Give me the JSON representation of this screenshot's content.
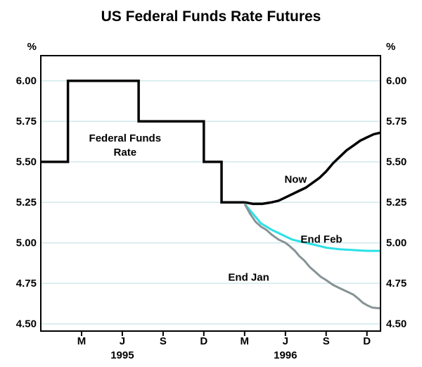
{
  "chart_data": {
    "type": "line",
    "title": "US Federal Funds Rate Futures",
    "y_unit": "%",
    "xlim": [
      -1,
      24
    ],
    "ylim": [
      4.455,
      6.155
    ],
    "grid": true,
    "yticks": [
      4.5,
      4.75,
      5.0,
      5.25,
      5.5,
      5.75,
      6.0
    ],
    "ytick_labels": [
      "4.50",
      "4.75",
      "5.00",
      "5.25",
      "5.50",
      "5.75",
      "6.00"
    ],
    "xticks": [
      2,
      5,
      8,
      11,
      14,
      17,
      20,
      23
    ],
    "xtick_labels": [
      "M",
      "J",
      "S",
      "D",
      "M",
      "J",
      "S",
      "D"
    ],
    "year_labels": [
      {
        "label": "1995",
        "x": 5
      },
      {
        "label": "1996",
        "x": 17
      }
    ],
    "colors": {
      "grid": "#d2e8ec",
      "frame": "#000000",
      "federal_funds_rate": "#000000",
      "now": "#000000",
      "end_feb": "#2be0e6",
      "end_jan": "#879396"
    },
    "series": [
      {
        "name": "Federal Funds Rate",
        "color": "#000000",
        "width": 3.5,
        "points": [
          [
            -1,
            5.5
          ],
          [
            1.0,
            5.5
          ],
          [
            1.0,
            6.0
          ],
          [
            6.2,
            6.0
          ],
          [
            6.2,
            5.75
          ],
          [
            11.0,
            5.75
          ],
          [
            11.0,
            5.5
          ],
          [
            12.3,
            5.5
          ],
          [
            12.3,
            5.25
          ],
          [
            14.0,
            5.25
          ]
        ]
      },
      {
        "name": "Now",
        "color": "#000000",
        "width": 3.5,
        "points": [
          [
            14.0,
            5.25
          ],
          [
            14.6,
            5.24
          ],
          [
            15.3,
            5.24
          ],
          [
            16.0,
            5.25
          ],
          [
            16.5,
            5.26
          ],
          [
            17.0,
            5.28
          ],
          [
            17.5,
            5.3
          ],
          [
            18.0,
            5.32
          ],
          [
            18.5,
            5.34
          ],
          [
            19.0,
            5.37
          ],
          [
            19.5,
            5.4
          ],
          [
            20.0,
            5.44
          ],
          [
            20.5,
            5.49
          ],
          [
            21.0,
            5.53
          ],
          [
            21.5,
            5.57
          ],
          [
            22.0,
            5.6
          ],
          [
            22.5,
            5.63
          ],
          [
            23.0,
            5.65
          ],
          [
            23.5,
            5.67
          ],
          [
            24.0,
            5.68
          ]
        ]
      },
      {
        "name": "End Feb",
        "color": "#2be0e6",
        "width": 3,
        "points": [
          [
            14.0,
            5.24
          ],
          [
            14.4,
            5.2
          ],
          [
            14.8,
            5.16
          ],
          [
            15.2,
            5.12
          ],
          [
            15.6,
            5.1
          ],
          [
            16.0,
            5.08
          ],
          [
            16.5,
            5.06
          ],
          [
            17.0,
            5.04
          ],
          [
            17.5,
            5.02
          ],
          [
            18.0,
            5.01
          ],
          [
            18.5,
            5.0
          ],
          [
            19.0,
            4.99
          ],
          [
            19.5,
            4.98
          ],
          [
            20.0,
            4.97
          ],
          [
            21.0,
            4.96
          ],
          [
            22.0,
            4.955
          ],
          [
            23.0,
            4.95
          ],
          [
            24.0,
            4.95
          ]
        ]
      },
      {
        "name": "End Jan",
        "color": "#879396",
        "width": 3,
        "points": [
          [
            14.0,
            5.24
          ],
          [
            14.4,
            5.18
          ],
          [
            14.8,
            5.13
          ],
          [
            15.2,
            5.1
          ],
          [
            15.6,
            5.08
          ],
          [
            16.0,
            5.05
          ],
          [
            16.5,
            5.02
          ],
          [
            17.0,
            5.0
          ],
          [
            17.3,
            4.98
          ],
          [
            17.7,
            4.95
          ],
          [
            18.0,
            4.92
          ],
          [
            18.4,
            4.89
          ],
          [
            18.8,
            4.85
          ],
          [
            19.2,
            4.82
          ],
          [
            19.6,
            4.79
          ],
          [
            20.0,
            4.77
          ],
          [
            20.5,
            4.74
          ],
          [
            21.0,
            4.72
          ],
          [
            21.5,
            4.7
          ],
          [
            22.0,
            4.68
          ],
          [
            22.3,
            4.66
          ],
          [
            22.7,
            4.63
          ],
          [
            23.0,
            4.615
          ],
          [
            23.4,
            4.6
          ],
          [
            24.0,
            4.595
          ]
        ]
      }
    ],
    "annotations": [
      {
        "lines": [
          "Federal Funds",
          "Rate"
        ],
        "x": 5.2,
        "y": 5.625
      },
      {
        "lines": [
          "Now"
        ],
        "x": 17.75,
        "y": 5.37
      },
      {
        "lines": [
          "End Feb"
        ],
        "x": 19.65,
        "y": 5.0
      },
      {
        "lines": [
          "End Jan"
        ],
        "x": 14.3,
        "y": 4.765
      }
    ]
  }
}
